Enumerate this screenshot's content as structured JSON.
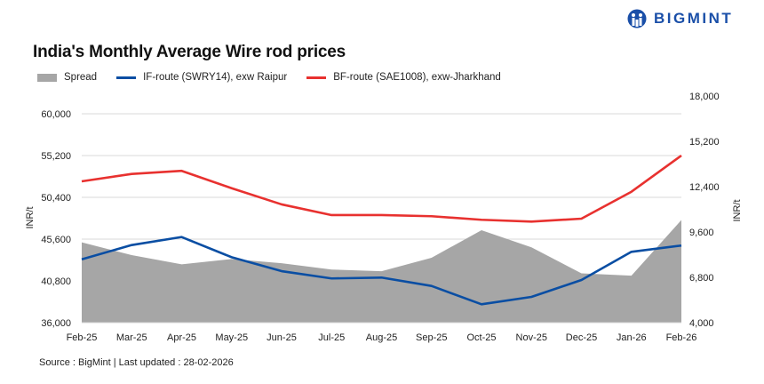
{
  "brand": {
    "name": "BIGMINT",
    "color": "#1a4fa8"
  },
  "source": "Source : BigMint | Last updated : 28-02-2026",
  "chart_data": {
    "type": "line",
    "title": "India's Monthly Average Wire rod prices",
    "categories": [
      "Feb-25",
      "Mar-25",
      "Apr-25",
      "May-25",
      "Jun-25",
      "Jul-25",
      "Aug-25",
      "Sep-25",
      "Oct-25",
      "Nov-25",
      "Dec-25",
      "Jan-26",
      "Feb-26"
    ],
    "ylabel": "INR/t",
    "y2label": "INR/t",
    "ylim": [
      36000,
      60000
    ],
    "yticks": [
      "36,000",
      "40,800",
      "45,600",
      "50,400",
      "55,200",
      "60,000"
    ],
    "y2lim": [
      4000,
      18000
    ],
    "y2ticks": [
      "4,000",
      "6,800",
      "9,600",
      "12,400",
      "15,200",
      "18,000"
    ],
    "grid": true,
    "legend_position": "top-left",
    "series": [
      {
        "name": "Spread",
        "type": "area",
        "axis": "right",
        "color": "#a6a6a6",
        "values": [
          8960,
          8170,
          7600,
          7930,
          7670,
          7280,
          7180,
          8010,
          9710,
          8650,
          7050,
          6900,
          10340
        ]
      },
      {
        "name": "IF-route (SWRY14), exw Raipur",
        "type": "line",
        "axis": "left",
        "color": "#0a4ea3",
        "values": [
          43280,
          44920,
          45840,
          43520,
          41920,
          41080,
          41180,
          40220,
          38110,
          38960,
          40900,
          44140,
          44860
        ]
      },
      {
        "name": "BF-route (SAE1008), exw-Jharkhand",
        "type": "line",
        "axis": "left",
        "color": "#e8312f",
        "values": [
          52240,
          53090,
          53440,
          51450,
          49590,
          48360,
          48360,
          48230,
          47820,
          47610,
          47950,
          51040,
          55200
        ]
      }
    ]
  }
}
